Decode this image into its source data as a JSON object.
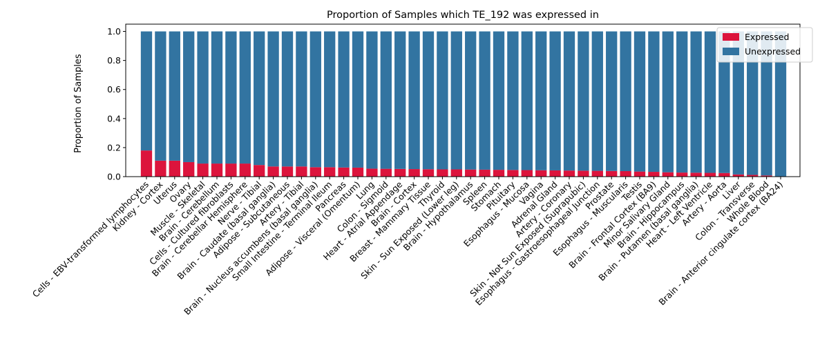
{
  "chart_data": {
    "type": "bar",
    "stacked": true,
    "title": "Proportion of Samples which TE_192 was expressed in",
    "xlabel": "",
    "ylabel": "Proportion of Samples",
    "ylim": [
      0,
      1.05
    ],
    "yticks": [
      "0.0",
      "0.2",
      "0.4",
      "0.6",
      "0.8",
      "1.0"
    ],
    "ytick_values": [
      0,
      0.2,
      0.4,
      0.6,
      0.8,
      1.0
    ],
    "grid": false,
    "legend_position": "top-right",
    "categories": [
      "Cells - EBV-transformed lymphocytes",
      "Kidney - Cortex",
      "Uterus",
      "Ovary",
      "Muscle - Skeletal",
      "Brain - Cerebellum",
      "Cells - Cultured fibroblasts",
      "Brain - Cerebellar Hemisphere",
      "Nerve - Tibial",
      "Brain - Caudate (basal ganglia)",
      "Adipose - Subcutaneous",
      "Artery - Tibial",
      "Brain - Nucleus accumbens (basal ganglia)",
      "Small Intestine - Terminal Ileum",
      "Pancreas",
      "Adipose - Visceral (Omentum)",
      "Lung",
      "Colon - Sigmoid",
      "Heart - Atrial Appendage",
      "Brain - Cortex",
      "Breast - Mammary Tissue",
      "Thyroid",
      "Skin - Sun Exposed (Lower leg)",
      "Brain - Hypothalamus",
      "Spleen",
      "Stomach",
      "Pituitary",
      "Esophagus - Mucosa",
      "Vagina",
      "Adrenal Gland",
      "Artery - Coronary",
      "Skin - Not Sun Exposed (Suprapubic)",
      "Esophagus - Gastroesophageal Junction",
      "Prostate",
      "Esophagus - Muscularis",
      "Testis",
      "Brain - Frontal Cortex (BA9)",
      "Minor Salivary Gland",
      "Brain - Hippocampus",
      "Brain - Putamen (basal ganglia)",
      "Heart - Left Ventricle",
      "Artery - Aorta",
      "Liver",
      "Colon - Transverse",
      "Whole Blood",
      "Brain - Anterior cingulate cortex (BA24)"
    ],
    "series": [
      {
        "name": "Expressed",
        "color": "#dc143c",
        "values": [
          0.18,
          0.11,
          0.11,
          0.1,
          0.09,
          0.09,
          0.09,
          0.09,
          0.08,
          0.07,
          0.07,
          0.07,
          0.065,
          0.065,
          0.063,
          0.062,
          0.055,
          0.054,
          0.053,
          0.052,
          0.051,
          0.05,
          0.05,
          0.049,
          0.048,
          0.047,
          0.046,
          0.045,
          0.044,
          0.043,
          0.042,
          0.041,
          0.04,
          0.039,
          0.038,
          0.035,
          0.033,
          0.03,
          0.028,
          0.027,
          0.026,
          0.025,
          0.015,
          0.012,
          0.008,
          0.0
        ]
      },
      {
        "name": "Unexpressed",
        "color": "#3274a1",
        "values": [
          0.82,
          0.89,
          0.89,
          0.9,
          0.91,
          0.91,
          0.91,
          0.91,
          0.92,
          0.93,
          0.93,
          0.93,
          0.935,
          0.935,
          0.937,
          0.938,
          0.945,
          0.946,
          0.947,
          0.948,
          0.949,
          0.95,
          0.95,
          0.951,
          0.952,
          0.953,
          0.954,
          0.955,
          0.956,
          0.957,
          0.958,
          0.959,
          0.96,
          0.961,
          0.962,
          0.965,
          0.967,
          0.97,
          0.972,
          0.973,
          0.974,
          0.975,
          0.985,
          0.988,
          0.992,
          1.0
        ]
      }
    ]
  }
}
